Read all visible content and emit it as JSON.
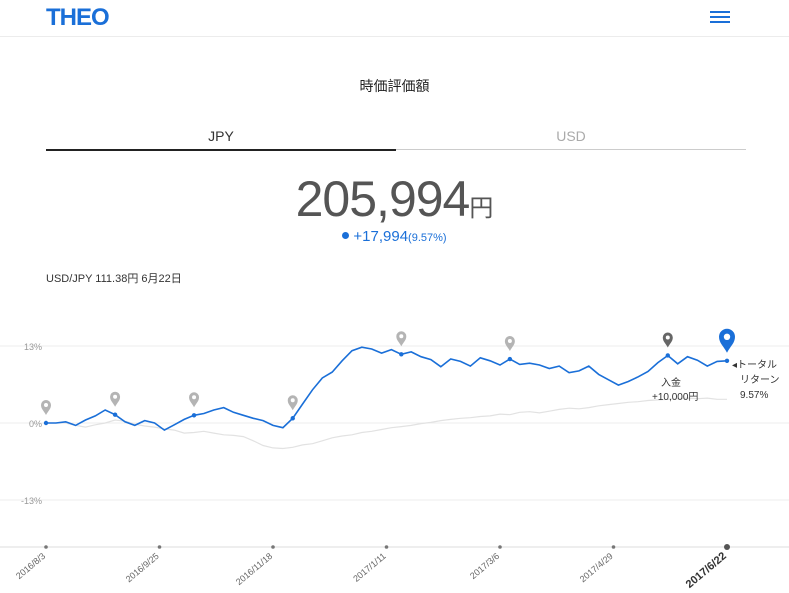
{
  "header": {
    "logo": "THEO",
    "menu_icon": "hamburger-menu-icon"
  },
  "section_title": "時価評価額",
  "tabs": [
    {
      "label": "JPY",
      "active": true
    },
    {
      "label": "USD",
      "active": false
    }
  ],
  "value": {
    "amount": "205,994",
    "unit": "円",
    "change": "+17,994",
    "change_pct": "(9.57%)"
  },
  "fx_note": "USD/JPY 111.38円 6月22日",
  "chart_data": {
    "type": "line",
    "y_ticks": [
      "13%",
      "0%",
      "-13%"
    ],
    "ylim": [
      -13,
      13
    ],
    "x_ticks": [
      "2016/8/3",
      "2016/9/25",
      "2016/11/18",
      "2017/1/11",
      "2017/3/6",
      "2017/4/29",
      "2017/6/22"
    ],
    "series": [
      {
        "color": "#1a6fd8",
        "y": [
          0,
          0,
          0.2,
          -0.4,
          0.5,
          1.2,
          2.2,
          1.4,
          0.2,
          -0.4,
          0.4,
          0,
          -1.2,
          -0.3,
          0.6,
          1.3,
          1.6,
          2.2,
          2.6,
          1.8,
          1.3,
          0.8,
          0.4,
          -0.4,
          -0.8,
          0.8,
          3.2,
          5.6,
          7.6,
          8.6,
          10.5,
          12.2,
          12.8,
          12.5,
          11.8,
          12.4,
          11.6,
          12.0,
          11.2,
          10.7,
          9.5,
          10.8,
          10.4,
          9.6,
          11.0,
          10.5,
          9.8,
          10.8,
          9.9,
          10.1,
          9.8,
          9.2,
          9.6,
          8.5,
          8.8,
          9.6,
          8.2,
          7.3,
          6.4,
          7.0,
          7.8,
          8.7,
          10.2,
          11.4,
          10.0,
          11.2,
          10.6,
          9.6,
          10.4,
          10.5
        ]
      },
      {
        "color": "#e2e2e2",
        "y": [
          0,
          0,
          0,
          -0.4,
          -0.7,
          -0.3,
          0,
          0.5,
          0.3,
          -0.2,
          -0.5,
          -0.7,
          -1.0,
          -1.2,
          -1.7,
          -1.6,
          -1.4,
          -1.7,
          -2.0,
          -2.1,
          -2.3,
          -3.0,
          -3.8,
          -4.2,
          -4.3,
          -4.1,
          -3.7,
          -3.5,
          -3.0,
          -2.5,
          -2.2,
          -2.0,
          -1.6,
          -1.4,
          -1.1,
          -0.8,
          -0.6,
          -0.4,
          -0.1,
          0.1,
          0.4,
          0.6,
          0.8,
          0.9,
          1.1,
          1.2,
          1.5,
          1.4,
          1.8,
          1.9,
          1.7,
          2.0,
          2.3,
          2.5,
          2.4,
          2.6,
          2.9,
          3.1,
          3.3,
          3.5,
          3.6,
          3.8,
          3.9,
          4.0,
          4.1,
          4.2,
          4.1,
          4.2,
          4.0,
          4.0
        ]
      }
    ],
    "deposit_label": "入金",
    "deposit_amount": "+10,000円",
    "total_label_1": "トータル",
    "total_label_2": "リターン",
    "total_pct": "9.57%"
  }
}
